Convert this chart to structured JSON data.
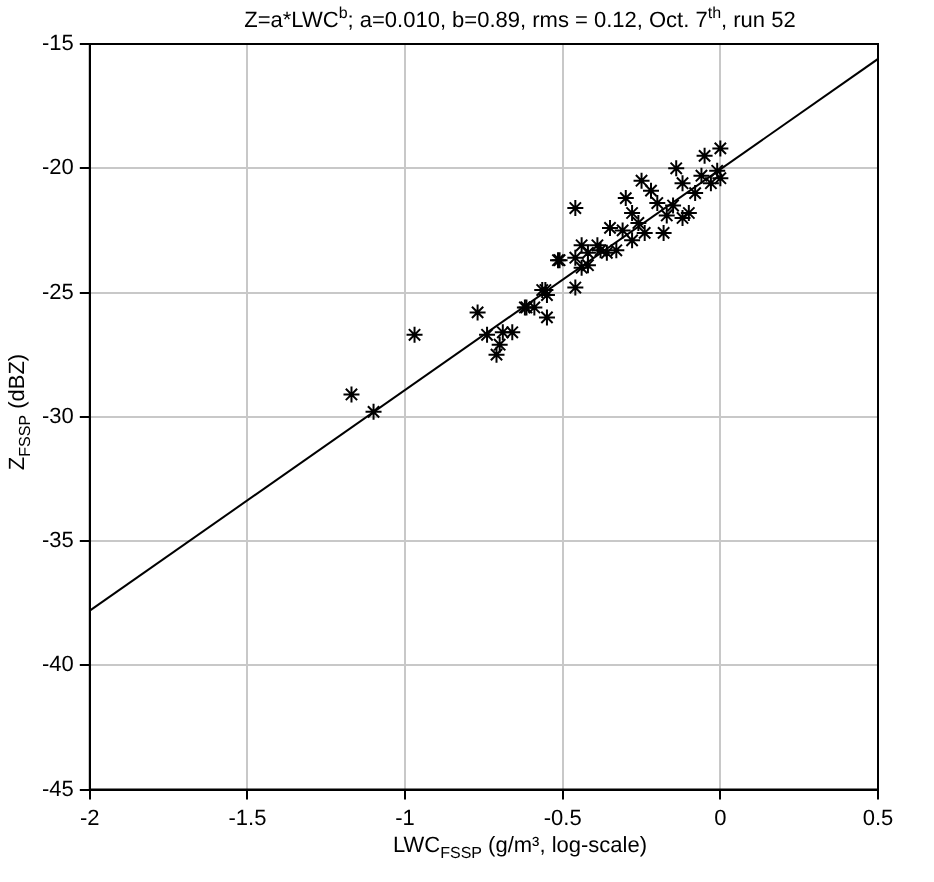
{
  "chart_data": {
    "type": "scatter",
    "title": "Z=a*LWC$^{b}$; a=0.010, b=0.89, rms = 0.12, Oct. 7$^{th}$, run 52",
    "xlabel": "LWC$_{FSSP}$ (g/m³, log-scale)",
    "ylabel": "Z$_{FSSP}$ (dBZ)",
    "xlim": [
      -2,
      0.5
    ],
    "xticks": [
      -2,
      -1.5,
      -1,
      -0.5,
      0,
      0.5
    ],
    "ylim": [
      -45,
      -15
    ],
    "yticks": [
      -45,
      -40,
      -35,
      -30,
      -25,
      -20,
      -15
    ],
    "grid": true,
    "legend": false,
    "series": [
      {
        "marker": "cross",
        "color": "#000000",
        "x": [
          -1.17,
          -1.1,
          -0.97,
          -0.77,
          -0.74,
          -0.71,
          -0.7,
          -0.69,
          -0.66,
          -0.62,
          -0.615,
          -0.59,
          -0.565,
          -0.555,
          -0.55,
          -0.55,
          -0.515,
          -0.51,
          -0.46,
          -0.46,
          -0.46,
          -0.44,
          -0.44,
          -0.42,
          -0.42,
          -0.39,
          -0.38,
          -0.36,
          -0.35,
          -0.33,
          -0.31,
          -0.28,
          -0.28,
          -0.26,
          -0.24,
          -0.22,
          -0.2,
          -0.18,
          -0.17,
          -0.15,
          -0.12,
          -0.12,
          -0.1,
          -0.08,
          -0.06,
          -0.05,
          -0.03,
          -0.01,
          0,
          0,
          -0.3,
          -0.25,
          -0.14
        ],
        "values": [
          -29.1,
          -29.8,
          -26.7,
          -25.8,
          -26.7,
          -27.5,
          -27.1,
          -26.6,
          -26.6,
          -25.6,
          -25.6,
          -25.6,
          -24.9,
          -24.9,
          -26.0,
          -25.1,
          -23.7,
          -23.7,
          -24.8,
          -23.6,
          -21.6,
          -24.0,
          -23.1,
          -23.4,
          -23.9,
          -23.1,
          -23.3,
          -23.4,
          -22.4,
          -23.3,
          -22.5,
          -22.9,
          -21.8,
          -22.2,
          -22.6,
          -20.9,
          -21.4,
          -22.6,
          -21.9,
          -21.5,
          -20.6,
          -22.0,
          -21.8,
          -21.0,
          -20.3,
          -19.5,
          -20.6,
          -20.1,
          -19.2,
          -20.4,
          -21.2,
          -20.5,
          -20.0
        ]
      },
      {
        "type": "line",
        "marker": "none",
        "color": "#000000",
        "x": [
          -2,
          0.5
        ],
        "values": [
          -37.8,
          -15.6
        ]
      }
    ]
  }
}
